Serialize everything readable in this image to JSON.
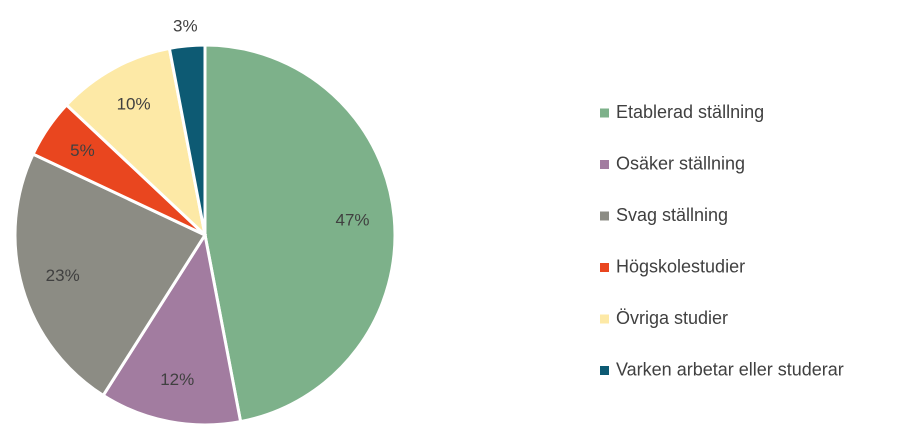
{
  "chart_data": {
    "type": "pie",
    "categories": [
      "Etablerad ställning",
      "Osäker ställning",
      "Svag ställning",
      "Högskolestudier",
      "Övriga studier",
      "Varken arbetar eller studerar"
    ],
    "values": [
      47,
      12,
      23,
      5,
      10,
      3
    ],
    "value_labels": [
      "47%",
      "12%",
      "23%",
      "5%",
      "10%",
      "3%"
    ],
    "colors": [
      "#7db18a",
      "#a27ca0",
      "#8c8c84",
      "#e9461f",
      "#fde9a6",
      "#0d5a73"
    ],
    "legend": "right"
  }
}
